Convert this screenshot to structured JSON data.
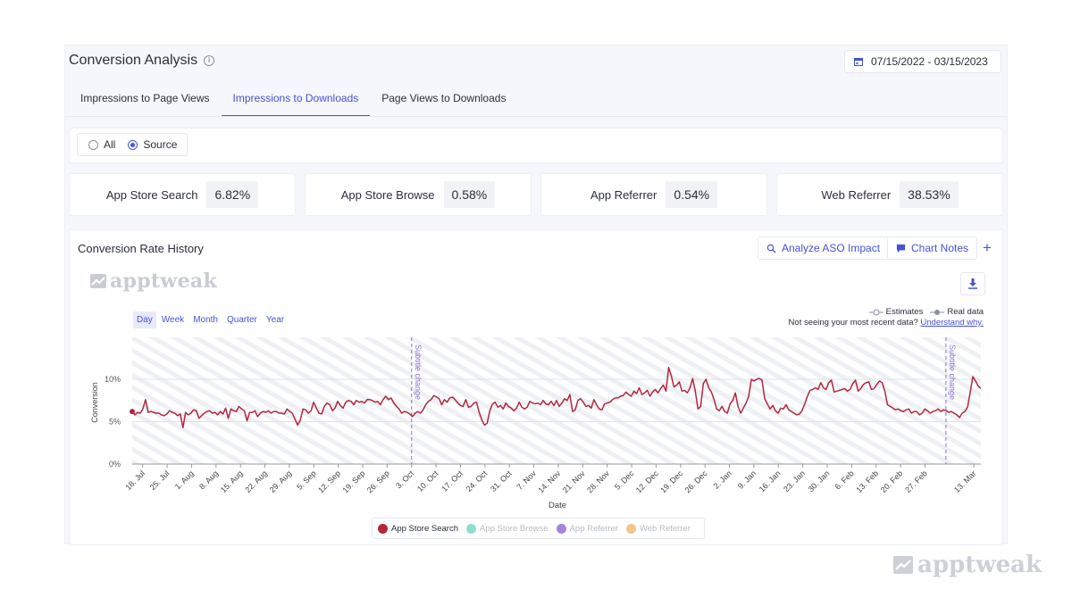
{
  "header": {
    "title": "Conversion Analysis",
    "info_icon": "info-icon",
    "date_range": "07/15/2022 - 03/15/2023"
  },
  "tabs": [
    {
      "label": "Impressions to Page Views",
      "active": false
    },
    {
      "label": "Impressions to Downloads",
      "active": true
    },
    {
      "label": "Page Views to Downloads",
      "active": false
    }
  ],
  "filter": {
    "options": [
      {
        "label": "All",
        "checked": false
      },
      {
        "label": "Source",
        "checked": true
      }
    ]
  },
  "metrics": [
    {
      "label": "App Store Search",
      "value": "6.82%"
    },
    {
      "label": "App Store Browse",
      "value": "0.58%"
    },
    {
      "label": "App Referrer",
      "value": "0.54%"
    },
    {
      "label": "Web Referrer",
      "value": "38.53%"
    }
  ],
  "chart_card": {
    "title": "Conversion Rate History",
    "analyze_label": "Analyze ASO Impact",
    "notes_label": "Chart Notes",
    "plus_label": "+",
    "logo_text": "apptweak",
    "periods": [
      {
        "label": "Day",
        "active": true
      },
      {
        "label": "Week",
        "active": false
      },
      {
        "label": "Month",
        "active": false
      },
      {
        "label": "Quarter",
        "active": false
      },
      {
        "label": "Year",
        "active": false
      }
    ],
    "estimates_label": "Estimates",
    "real_data_label": "Real data",
    "notice_text": "Not seeing your most recent data?",
    "notice_link": "Understand why."
  },
  "chart_data": {
    "type": "line",
    "xlabel": "Date",
    "ylabel": "Conversion",
    "y_ticks": [
      "10%",
      "5%",
      "0%"
    ],
    "ylim": [
      0,
      10
    ],
    "x_ticks": [
      "18. Jul",
      "25. Jul",
      "1. Aug",
      "8. Aug",
      "15. Aug",
      "22. Aug",
      "29. Aug",
      "5. Sep",
      "12. Sep",
      "19. Sep",
      "26. Sep",
      "3. Oct",
      "10. Oct",
      "17. Oct",
      "24. Oct",
      "31. Oct",
      "7. Nov",
      "14. Nov",
      "21. Nov",
      "28. Nov",
      "5. Dec",
      "12. Dec",
      "19. Dec",
      "26. Dec",
      "2. Jan",
      "9. Jan",
      "16. Jan",
      "23. Jan",
      "30. Jan",
      "6. Feb",
      "13. Feb",
      "20. Feb",
      "27. Feb",
      "13. Mar"
    ],
    "grid": true,
    "annotations": [
      {
        "label": "Subtitle change",
        "date": "10/03/2022"
      },
      {
        "label": "Subtitle change",
        "date": "03/05/2023"
      }
    ],
    "series": [
      {
        "name": "App Store Search",
        "color": "#b3263d",
        "values": [
          6.2,
          5.8,
          6.1,
          6.0,
          6.5,
          7.6,
          6.1,
          6.2,
          6.1,
          6.0,
          6.0,
          5.8,
          5.7,
          5.9,
          6.3,
          6.1,
          6.0,
          5.7,
          5.9,
          4.3,
          6.1,
          5.8,
          6.0,
          6.4,
          6.3,
          5.4,
          5.7,
          6.0,
          6.2,
          6.3,
          6.0,
          6.1,
          5.8,
          6.2,
          5.9,
          6.6,
          5.4,
          6.5,
          6.3,
          6.2,
          6.8,
          6.5,
          6.3,
          5.1,
          6.1,
          6.1,
          6.3,
          5.6,
          6.0,
          6.2,
          6.1,
          6.3,
          6.0,
          6.2,
          6.2,
          6.0,
          6.0,
          5.9,
          6.5,
          6.2,
          6.0,
          5.3,
          4.6,
          5.2,
          6.5,
          6.4,
          6.0,
          6.3,
          7.3,
          6.6,
          6.0,
          5.9,
          6.8,
          7.2,
          7.0,
          6.3,
          6.6,
          7.4,
          6.9,
          6.6,
          7.3,
          7.5,
          7.4,
          7.0,
          7.5,
          7.3,
          7.4,
          7.2,
          7.6,
          7.6,
          7.5,
          7.3,
          7.4,
          7.0,
          7.6,
          8.0,
          7.6,
          7.8,
          7.2,
          6.8,
          6.5,
          6.0,
          6.2,
          6.1,
          5.9,
          5.6,
          6.0,
          6.2,
          6.0,
          6.4,
          7.0,
          7.4,
          7.6,
          8.1,
          7.9,
          7.7,
          7.0,
          7.6,
          7.3,
          7.8,
          7.9,
          7.6,
          7.2,
          6.9,
          6.8,
          7.6,
          6.7,
          6.8,
          7.2,
          7.3,
          6.1,
          5.2,
          4.6,
          4.8,
          6.3,
          7.1,
          7.3,
          6.7,
          6.9,
          6.5,
          7.2,
          6.8,
          6.6,
          6.3,
          6.6,
          7.3,
          6.7,
          6.5,
          6.7,
          7.4,
          7.2,
          7.1,
          7.2,
          7.0,
          7.5,
          7.1,
          7.0,
          7.4,
          6.9,
          7.5,
          6.8,
          7.2,
          7.7,
          7.5,
          8.2,
          6.2,
          6.4,
          7.5,
          7.7,
          7.3,
          6.8,
          6.9,
          6.6,
          7.6,
          7.0,
          6.5,
          6.4,
          7.1,
          7.2,
          7.3,
          7.6,
          7.8,
          7.8,
          8.0,
          8.1,
          8.5,
          8.2,
          8.0,
          8.6,
          8.3,
          9.0,
          8.2,
          8.4,
          8.7,
          8.0,
          8.5,
          8.8,
          8.4,
          8.9,
          9.3,
          8.6,
          11.4,
          10.4,
          9.1,
          9.3,
          9.7,
          8.6,
          8.7,
          8.4,
          9.0,
          10.1,
          8.6,
          6.5,
          6.8,
          9.5,
          10.0,
          9.0,
          8.5,
          7.6,
          6.5,
          6.3,
          6.8,
          6.2,
          6.0,
          7.1,
          7.5,
          8.4,
          6.8,
          6.0,
          6.6,
          7.2,
          8.0,
          10.0,
          9.8,
          10.0,
          10.1,
          9.9,
          7.7,
          7.1,
          6.5,
          6.9,
          6.3,
          6.0,
          6.6,
          6.5,
          7.0,
          6.4,
          6.2,
          6.0,
          5.8,
          5.9,
          6.3,
          7.1,
          8.0,
          8.7,
          8.8,
          9.0,
          8.8,
          9.6,
          9.0,
          8.8,
          9.6,
          9.9,
          8.5,
          8.6,
          8.7,
          8.8,
          8.9,
          8.6,
          8.8,
          9.5,
          9.9,
          8.6,
          8.9,
          9.4,
          9.6,
          9.7,
          8.8,
          8.9,
          9.4,
          9.8,
          9.6,
          8.6,
          7.0,
          6.8,
          6.6,
          6.4,
          6.5,
          6.3,
          6.2,
          6.4,
          6.5,
          6.0,
          6.2,
          6.2,
          5.8,
          6.0,
          6.5,
          6.3,
          6.0,
          6.2,
          6.3,
          6.5,
          6.2,
          6.4,
          6.3,
          6.1,
          6.2,
          6.0,
          5.8,
          5.5,
          6.0,
          6.2,
          6.7,
          8.5,
          10.3,
          9.8,
          9.2,
          8.9
        ]
      }
    ],
    "legend": [
      {
        "name": "App Store Search",
        "color": "#b3263d",
        "enabled": true
      },
      {
        "name": "App Store Browse",
        "color": "#6ccfc4",
        "enabled": false
      },
      {
        "name": "App Referrer",
        "color": "#8a5ad6",
        "enabled": false
      },
      {
        "name": "Web Referrer",
        "color": "#efb06a",
        "enabled": false
      }
    ]
  },
  "watermark": {
    "text": "apptweak"
  }
}
